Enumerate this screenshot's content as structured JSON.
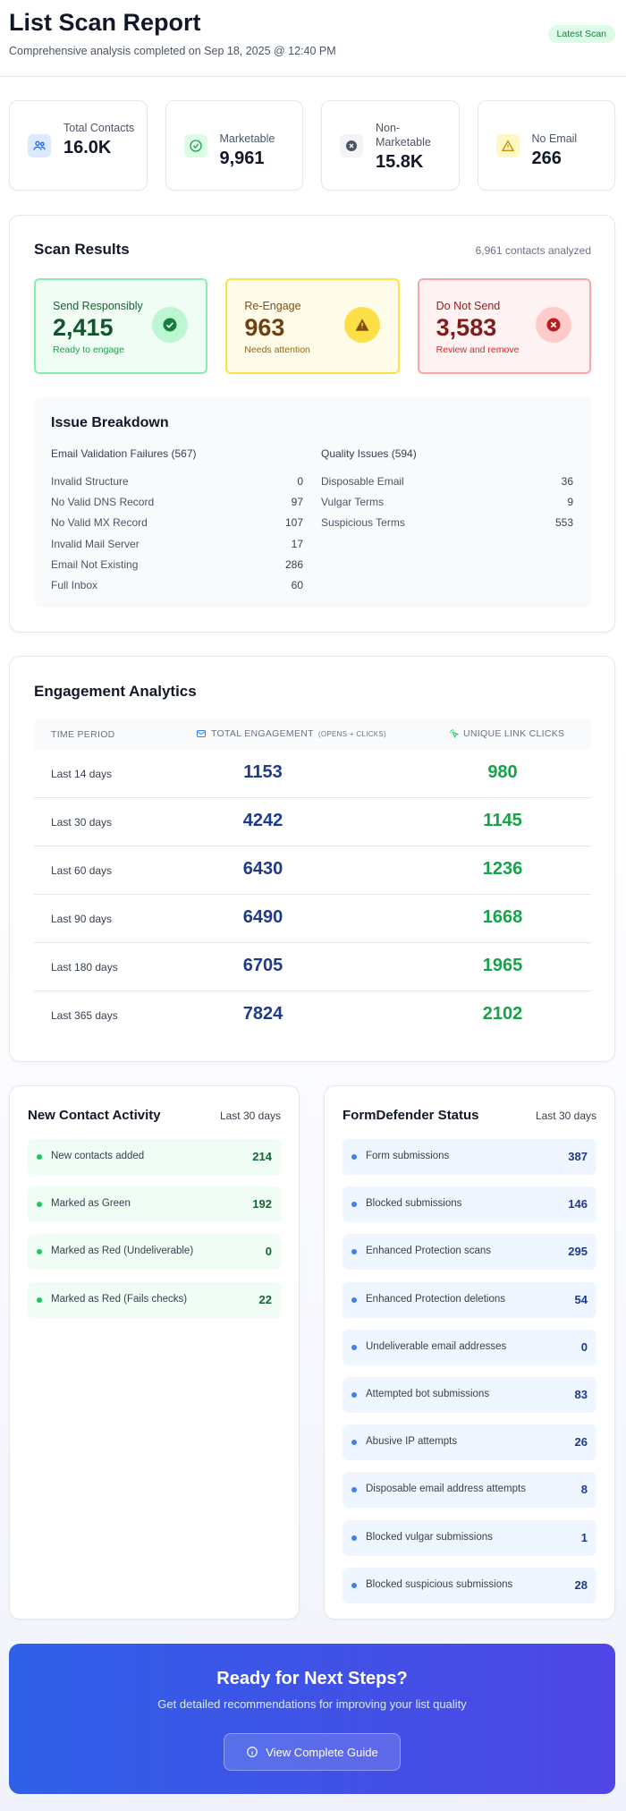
{
  "header": {
    "title": "List Scan Report",
    "subtitle": "Comprehensive analysis completed on Sep 18, 2025 @ 12:40 PM",
    "badge": "Latest Scan"
  },
  "stats": [
    {
      "label": "Total Contacts",
      "value": "16.0K",
      "icon": "users-icon",
      "color": "#dbeafe"
    },
    {
      "label": "Marketable",
      "value": "9,961",
      "icon": "check-circle-icon",
      "color": "#dcfce7"
    },
    {
      "label": "Non-Marketable",
      "value": "15.8K",
      "icon": "x-circle-icon",
      "color": "#f3f4f6"
    },
    {
      "label": "No Email",
      "value": "266",
      "icon": "warning-icon",
      "color": "#fef9c3"
    }
  ],
  "scan": {
    "title": "Scan Results",
    "meta": "6,961 contacts analyzed",
    "results": [
      {
        "label": "Send Responsibly",
        "value": "2,415",
        "sub": "Ready to engage"
      },
      {
        "label": "Re-Engage",
        "value": "963",
        "sub": "Needs attention"
      },
      {
        "label": "Do Not Send",
        "value": "3,583",
        "sub": "Review and remove"
      }
    ],
    "breakdown": {
      "title": "Issue Breakdown",
      "validation": {
        "heading": "Email Validation Failures (567)",
        "rows": [
          {
            "label": "Invalid Structure",
            "value": "0"
          },
          {
            "label": "No Valid DNS Record",
            "value": "97"
          },
          {
            "label": "No Valid MX Record",
            "value": "107"
          },
          {
            "label": "Invalid Mail Server",
            "value": "17"
          },
          {
            "label": "Email Not Existing",
            "value": "286"
          },
          {
            "label": "Full Inbox",
            "value": "60"
          }
        ]
      },
      "quality": {
        "heading": "Quality Issues (594)",
        "rows": [
          {
            "label": "Disposable Email",
            "value": "36"
          },
          {
            "label": "Vulgar Terms",
            "value": "9"
          },
          {
            "label": "Suspicious Terms",
            "value": "553"
          }
        ]
      }
    }
  },
  "engagement": {
    "title": "Engagement Analytics",
    "headers": {
      "period": "TIME PERIOD",
      "total": "TOTAL ENGAGEMENT",
      "total_note": "(OPENS + CLICKS)",
      "clicks": "UNIQUE LINK CLICKS"
    },
    "rows": [
      {
        "period": "Last 14 days",
        "total": "1153",
        "clicks": "980"
      },
      {
        "period": "Last 30 days",
        "total": "4242",
        "clicks": "1145"
      },
      {
        "period": "Last 60 days",
        "total": "6430",
        "clicks": "1236"
      },
      {
        "period": "Last 90 days",
        "total": "6490",
        "clicks": "1668"
      },
      {
        "period": "Last 180 days",
        "total": "6705",
        "clicks": "1965"
      },
      {
        "period": "Last 365 days",
        "total": "7824",
        "clicks": "2102"
      }
    ]
  },
  "contact_activity": {
    "title": "New Contact Activity",
    "meta": "Last 30 days",
    "items": [
      {
        "label": "New contacts added",
        "value": "214"
      },
      {
        "label": "Marked as Green",
        "value": "192"
      },
      {
        "label": "Marked as Red (Undeliverable)",
        "value": "0"
      },
      {
        "label": "Marked as Red (Fails checks)",
        "value": "22"
      }
    ]
  },
  "formdefender": {
    "title": "FormDefender Status",
    "meta": "Last 30 days",
    "items": [
      {
        "label": "Form submissions",
        "value": "387"
      },
      {
        "label": "Blocked submissions",
        "value": "146"
      },
      {
        "label": "Enhanced Protection scans",
        "value": "295"
      },
      {
        "label": "Enhanced Protection deletions",
        "value": "54"
      },
      {
        "label": "Undeliverable email addresses",
        "value": "0"
      },
      {
        "label": "Attempted bot submissions",
        "value": "83"
      },
      {
        "label": "Abusive IP attempts",
        "value": "26"
      },
      {
        "label": "Disposable email address attempts",
        "value": "8"
      },
      {
        "label": "Blocked vulgar submissions",
        "value": "1"
      },
      {
        "label": "Blocked suspicious submissions",
        "value": "28"
      }
    ]
  },
  "cta": {
    "title": "Ready for Next Steps?",
    "subtitle": "Get detailed recommendations for improving your list quality",
    "button": "View Complete Guide"
  }
}
